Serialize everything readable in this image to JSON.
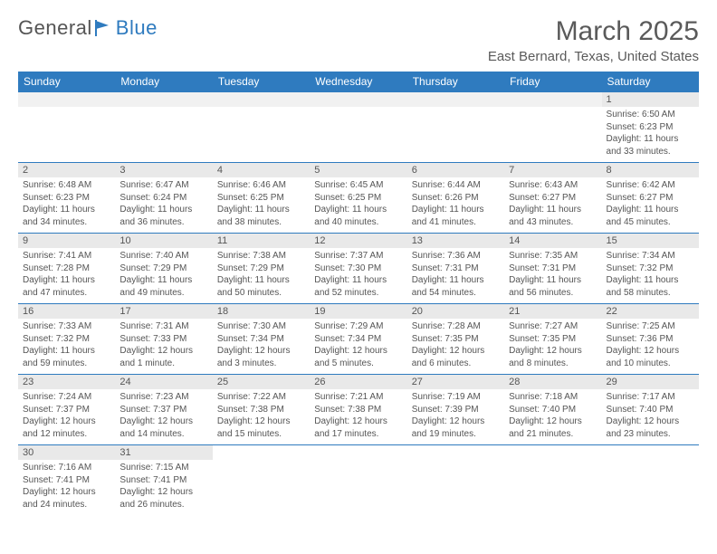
{
  "brand": {
    "part1": "General",
    "part2": "Blue"
  },
  "title": "March 2025",
  "location": "East Bernard, Texas, United States",
  "colors": {
    "header_bg": "#2f7bbf",
    "header_text": "#ffffff",
    "daynum_bg": "#e9e9e9",
    "text": "#555555",
    "border": "#2f7bbf"
  },
  "typography": {
    "title_fontsize": 30,
    "location_fontsize": 15,
    "header_fontsize": 12,
    "body_fontsize": 10
  },
  "day_headers": [
    "Sunday",
    "Monday",
    "Tuesday",
    "Wednesday",
    "Thursday",
    "Friday",
    "Saturday"
  ],
  "weeks": [
    [
      null,
      null,
      null,
      null,
      null,
      null,
      {
        "n": "1",
        "sr": "Sunrise: 6:50 AM",
        "ss": "Sunset: 6:23 PM",
        "dl": "Daylight: 11 hours and 33 minutes."
      }
    ],
    [
      {
        "n": "2",
        "sr": "Sunrise: 6:48 AM",
        "ss": "Sunset: 6:23 PM",
        "dl": "Daylight: 11 hours and 34 minutes."
      },
      {
        "n": "3",
        "sr": "Sunrise: 6:47 AM",
        "ss": "Sunset: 6:24 PM",
        "dl": "Daylight: 11 hours and 36 minutes."
      },
      {
        "n": "4",
        "sr": "Sunrise: 6:46 AM",
        "ss": "Sunset: 6:25 PM",
        "dl": "Daylight: 11 hours and 38 minutes."
      },
      {
        "n": "5",
        "sr": "Sunrise: 6:45 AM",
        "ss": "Sunset: 6:25 PM",
        "dl": "Daylight: 11 hours and 40 minutes."
      },
      {
        "n": "6",
        "sr": "Sunrise: 6:44 AM",
        "ss": "Sunset: 6:26 PM",
        "dl": "Daylight: 11 hours and 41 minutes."
      },
      {
        "n": "7",
        "sr": "Sunrise: 6:43 AM",
        "ss": "Sunset: 6:27 PM",
        "dl": "Daylight: 11 hours and 43 minutes."
      },
      {
        "n": "8",
        "sr": "Sunrise: 6:42 AM",
        "ss": "Sunset: 6:27 PM",
        "dl": "Daylight: 11 hours and 45 minutes."
      }
    ],
    [
      {
        "n": "9",
        "sr": "Sunrise: 7:41 AM",
        "ss": "Sunset: 7:28 PM",
        "dl": "Daylight: 11 hours and 47 minutes."
      },
      {
        "n": "10",
        "sr": "Sunrise: 7:40 AM",
        "ss": "Sunset: 7:29 PM",
        "dl": "Daylight: 11 hours and 49 minutes."
      },
      {
        "n": "11",
        "sr": "Sunrise: 7:38 AM",
        "ss": "Sunset: 7:29 PM",
        "dl": "Daylight: 11 hours and 50 minutes."
      },
      {
        "n": "12",
        "sr": "Sunrise: 7:37 AM",
        "ss": "Sunset: 7:30 PM",
        "dl": "Daylight: 11 hours and 52 minutes."
      },
      {
        "n": "13",
        "sr": "Sunrise: 7:36 AM",
        "ss": "Sunset: 7:31 PM",
        "dl": "Daylight: 11 hours and 54 minutes."
      },
      {
        "n": "14",
        "sr": "Sunrise: 7:35 AM",
        "ss": "Sunset: 7:31 PM",
        "dl": "Daylight: 11 hours and 56 minutes."
      },
      {
        "n": "15",
        "sr": "Sunrise: 7:34 AM",
        "ss": "Sunset: 7:32 PM",
        "dl": "Daylight: 11 hours and 58 minutes."
      }
    ],
    [
      {
        "n": "16",
        "sr": "Sunrise: 7:33 AM",
        "ss": "Sunset: 7:32 PM",
        "dl": "Daylight: 11 hours and 59 minutes."
      },
      {
        "n": "17",
        "sr": "Sunrise: 7:31 AM",
        "ss": "Sunset: 7:33 PM",
        "dl": "Daylight: 12 hours and 1 minute."
      },
      {
        "n": "18",
        "sr": "Sunrise: 7:30 AM",
        "ss": "Sunset: 7:34 PM",
        "dl": "Daylight: 12 hours and 3 minutes."
      },
      {
        "n": "19",
        "sr": "Sunrise: 7:29 AM",
        "ss": "Sunset: 7:34 PM",
        "dl": "Daylight: 12 hours and 5 minutes."
      },
      {
        "n": "20",
        "sr": "Sunrise: 7:28 AM",
        "ss": "Sunset: 7:35 PM",
        "dl": "Daylight: 12 hours and 6 minutes."
      },
      {
        "n": "21",
        "sr": "Sunrise: 7:27 AM",
        "ss": "Sunset: 7:35 PM",
        "dl": "Daylight: 12 hours and 8 minutes."
      },
      {
        "n": "22",
        "sr": "Sunrise: 7:25 AM",
        "ss": "Sunset: 7:36 PM",
        "dl": "Daylight: 12 hours and 10 minutes."
      }
    ],
    [
      {
        "n": "23",
        "sr": "Sunrise: 7:24 AM",
        "ss": "Sunset: 7:37 PM",
        "dl": "Daylight: 12 hours and 12 minutes."
      },
      {
        "n": "24",
        "sr": "Sunrise: 7:23 AM",
        "ss": "Sunset: 7:37 PM",
        "dl": "Daylight: 12 hours and 14 minutes."
      },
      {
        "n": "25",
        "sr": "Sunrise: 7:22 AM",
        "ss": "Sunset: 7:38 PM",
        "dl": "Daylight: 12 hours and 15 minutes."
      },
      {
        "n": "26",
        "sr": "Sunrise: 7:21 AM",
        "ss": "Sunset: 7:38 PM",
        "dl": "Daylight: 12 hours and 17 minutes."
      },
      {
        "n": "27",
        "sr": "Sunrise: 7:19 AM",
        "ss": "Sunset: 7:39 PM",
        "dl": "Daylight: 12 hours and 19 minutes."
      },
      {
        "n": "28",
        "sr": "Sunrise: 7:18 AM",
        "ss": "Sunset: 7:40 PM",
        "dl": "Daylight: 12 hours and 21 minutes."
      },
      {
        "n": "29",
        "sr": "Sunrise: 7:17 AM",
        "ss": "Sunset: 7:40 PM",
        "dl": "Daylight: 12 hours and 23 minutes."
      }
    ],
    [
      {
        "n": "30",
        "sr": "Sunrise: 7:16 AM",
        "ss": "Sunset: 7:41 PM",
        "dl": "Daylight: 12 hours and 24 minutes."
      },
      {
        "n": "31",
        "sr": "Sunrise: 7:15 AM",
        "ss": "Sunset: 7:41 PM",
        "dl": "Daylight: 12 hours and 26 minutes."
      },
      null,
      null,
      null,
      null,
      null
    ]
  ]
}
